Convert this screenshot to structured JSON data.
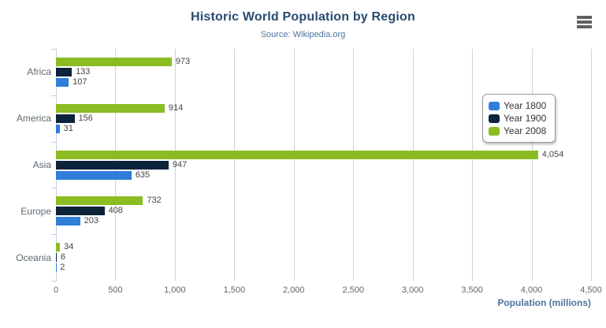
{
  "header": {
    "title": "Historic World Population by Region",
    "subtitle": "Source: Wikipedia.org"
  },
  "export_menu": {
    "icon": "hamburger-icon"
  },
  "chart_data": {
    "type": "bar",
    "orientation": "horizontal",
    "title": "Historic World Population by Region",
    "subtitle": "Source: Wikipedia.org",
    "categories": [
      "Africa",
      "America",
      "Asia",
      "Europe",
      "Oceania"
    ],
    "series": [
      {
        "name": "Year 1800",
        "color": "#2f7ed8",
        "values": [
          107,
          31,
          635,
          203,
          2
        ]
      },
      {
        "name": "Year 1900",
        "color": "#0d233a",
        "values": [
          133,
          156,
          947,
          408,
          6
        ]
      },
      {
        "name": "Year 2008",
        "color": "#8bbc21",
        "values": [
          973,
          914,
          4054,
          732,
          34
        ]
      }
    ],
    "bar_order_top_to_bottom": [
      "Year 2008",
      "Year 1900",
      "Year 1800"
    ],
    "xlabel": "Population (millions)",
    "ylabel": "",
    "xlim": [
      0,
      4500
    ],
    "xticks": [
      0,
      500,
      1000,
      1500,
      2000,
      2500,
      3000,
      3500,
      4000,
      4500
    ],
    "xtick_labels": [
      "0",
      "500",
      "1,000",
      "1,500",
      "2,000",
      "2,500",
      "3,000",
      "3,500",
      "4,000",
      "4,500"
    ],
    "data_labels": [
      "107",
      "31",
      "635",
      "203",
      "2",
      "133",
      "156",
      "947",
      "408",
      "6",
      "973",
      "914",
      "4,054",
      "732",
      "34"
    ],
    "grid": true,
    "legend_position": "middle-right",
    "legend_items": [
      "Year 1800",
      "Year 1900",
      "Year 2008"
    ],
    "colors": {
      "title": "#274b6d",
      "subtitle": "#4d759e",
      "axis_title": "#4d759e",
      "axis_line": "#c0d0e0",
      "gridline": "#d2d2d2",
      "tick_label": "#666666",
      "data_label": "#454545"
    }
  }
}
